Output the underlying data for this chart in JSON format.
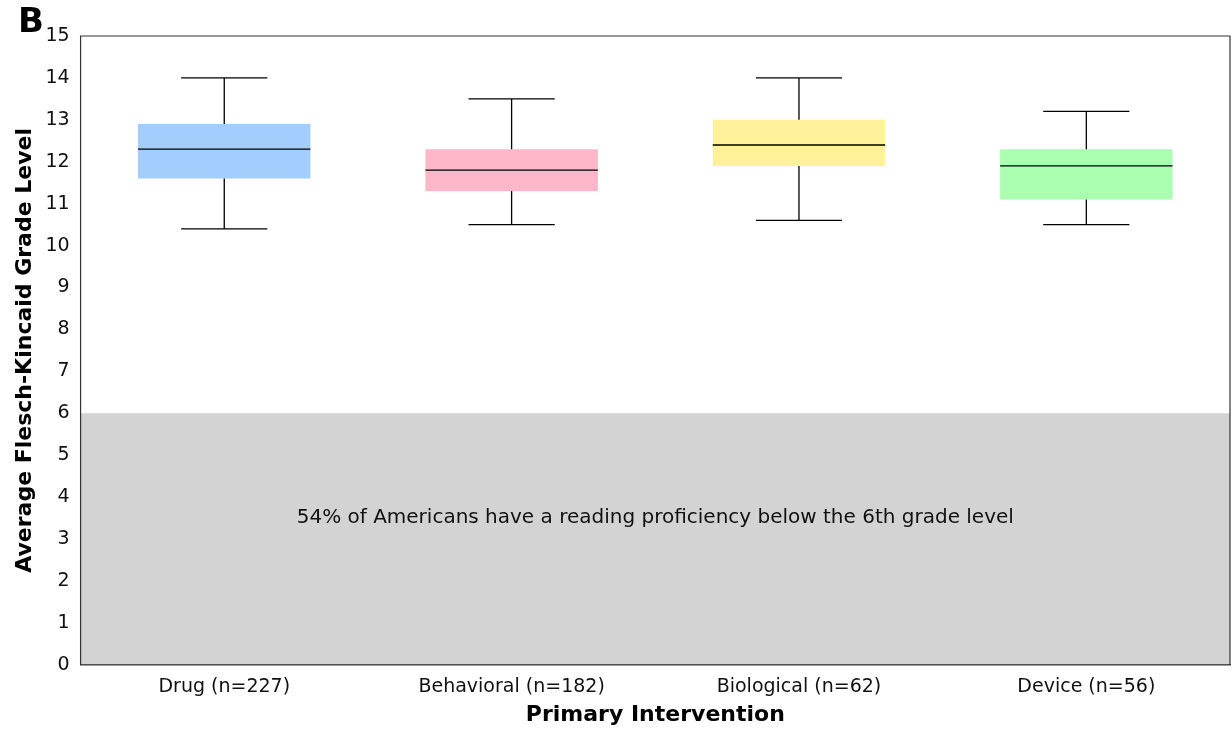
{
  "chart_data": {
    "type": "box",
    "xlabel": "Primary Intervention",
    "ylabel": "Average Flesch-Kincaid Grade Level",
    "annotations": [
      "B"
    ],
    "categories": [
      "Drug (n=227)",
      "Behavioral (n=182)",
      "Biological (n=62)",
      "Device (n=56)"
    ],
    "colors": [
      "#a3cdfd",
      "#ffb6c8",
      "#fff19a",
      "#aaffb0"
    ],
    "boxes": [
      {
        "low": 10.4,
        "q1": 11.6,
        "median": 12.3,
        "q3": 12.9,
        "high": 14.0
      },
      {
        "low": 10.5,
        "q1": 11.3,
        "median": 11.8,
        "q3": 12.3,
        "high": 13.5
      },
      {
        "low": 10.6,
        "q1": 11.9,
        "median": 12.4,
        "q3": 13.0,
        "high": 14.0
      },
      {
        "low": 10.5,
        "q1": 11.1,
        "median": 11.9,
        "q3": 12.3,
        "high": 13.2
      }
    ],
    "ylim": [
      0,
      15
    ],
    "yticks": [
      0,
      1,
      2,
      3,
      4,
      5,
      6,
      7,
      8,
      9,
      10,
      11,
      12,
      13,
      14,
      15
    ],
    "bands": [
      {
        "axis": "y",
        "from": 0,
        "to": 6,
        "label": "54% of Americans have a reading proficiency below the 6th grade level",
        "color": "#d3d3d3"
      }
    ],
    "grid": false,
    "legend": false
  }
}
